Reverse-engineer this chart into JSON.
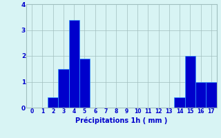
{
  "categories": [
    0,
    1,
    2,
    3,
    4,
    5,
    6,
    7,
    8,
    9,
    10,
    11,
    12,
    13,
    14,
    15,
    16,
    17
  ],
  "values": [
    0,
    0,
    0.4,
    1.5,
    3.4,
    1.9,
    0,
    0,
    0,
    0,
    0,
    0,
    0,
    0,
    0.4,
    2.0,
    1.0,
    1.0
  ],
  "bar_color": "#0000cc",
  "bar_edge_color": "#3399ff",
  "background_color": "#d8f4f4",
  "grid_color": "#a0bebe",
  "text_color": "#0000cc",
  "xlabel": "Précipitations 1h ( mm )",
  "ylim": [
    0,
    4
  ],
  "yticks": [
    0,
    1,
    2,
    3,
    4
  ],
  "xticks": [
    0,
    1,
    2,
    3,
    4,
    5,
    6,
    7,
    8,
    9,
    10,
    11,
    12,
    13,
    14,
    15,
    16,
    17
  ],
  "bar_width": 1.0,
  "xlim_left": -0.5,
  "xlim_right": 17.5
}
